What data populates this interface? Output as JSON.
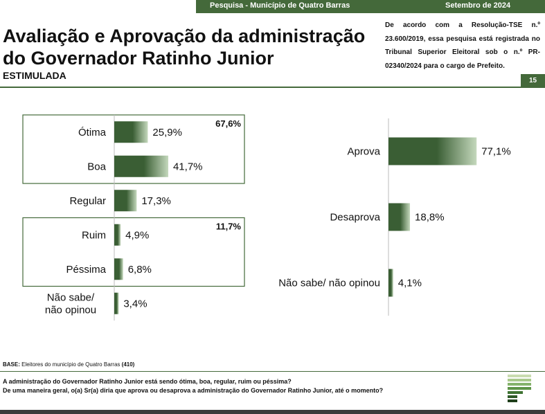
{
  "header": {
    "survey_label": "Pesquisa - Município de Quatro Barras",
    "date_label": "Setembro de 2024",
    "page_number": "15"
  },
  "title_line1": "Avaliação e Aprovação da administração",
  "title_line2": "do Governador Ratinho Junior",
  "subtitle": "ESTIMULADA",
  "registration_note": "De acordo com a Resolução-TSE n.º 23.600/2019, essa pesquisa está registrada no Tribunal Superior Eleitoral sob o n.º PR-02340/2024 para o cargo de Prefeito.",
  "base_label": "BASE:",
  "base_text": "Eleitores do município de Quatro Barras",
  "base_count": "(410)",
  "question1": "A administração do Governador Ratinho Junior está sendo ótima, boa, regular, ruim ou péssima?",
  "question2": "De uma maneira geral, o(a) Sr(a) diria que aprova ou desaprova a administração do Governador Ratinho Junior, até o momento?",
  "colors": {
    "accent": "#44693a",
    "bar_dark": "#3a5e34",
    "bar_light": "#c4d8bc"
  },
  "chart_data": [
    {
      "type": "bar",
      "orientation": "horizontal",
      "categories": [
        "Ótima",
        "Boa",
        "Regular",
        "Ruim",
        "Péssima",
        "Não sabe/ não opinou"
      ],
      "values": [
        25.9,
        41.7,
        17.3,
        4.9,
        6.8,
        3.4
      ],
      "value_labels": [
        "25,9%",
        "41,7%",
        "17,3%",
        "4,9%",
        "6,8%",
        "3,4%"
      ],
      "groups": [
        {
          "members": [
            "Ótima",
            "Boa"
          ],
          "total_label": "67,6%"
        },
        {
          "members": [
            "Ruim",
            "Péssima"
          ],
          "total_label": "11,7%"
        }
      ],
      "xlim": [
        0,
        100
      ]
    },
    {
      "type": "bar",
      "orientation": "horizontal",
      "categories": [
        "Aprova",
        "Desaprova",
        "Não sabe/ não opinou"
      ],
      "values": [
        77.1,
        18.8,
        4.1
      ],
      "value_labels": [
        "77,1%",
        "18,8%",
        "4,1%"
      ],
      "xlim": [
        0,
        100
      ]
    }
  ]
}
